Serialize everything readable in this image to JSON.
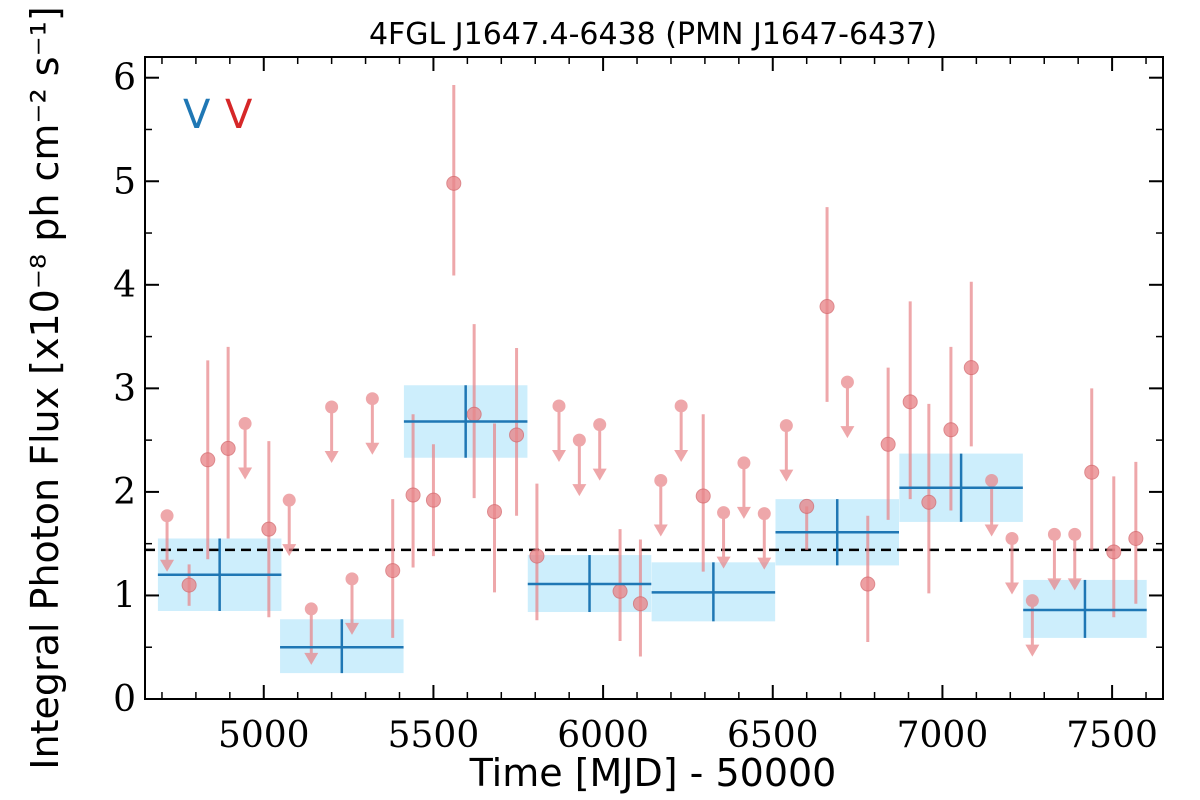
{
  "chart_data": {
    "type": "scatter",
    "title": "4FGL J1647.4-6438 (PMN J1647-6437)",
    "xlabel": "Time [MJD] - 50000",
    "ylabel": "Integral Photon Flux [x10⁻⁸ ph cm⁻² s⁻¹]",
    "xlim": [
      4650,
      7650
    ],
    "ylim": [
      0,
      6.2
    ],
    "x_ticks": [
      5000,
      5500,
      6000,
      6500,
      7000,
      7500
    ],
    "y_ticks": [
      0,
      1,
      2,
      3,
      4,
      5,
      6
    ],
    "grid": false,
    "legend_markers": [
      {
        "text": "V",
        "color": "#1f77b4"
      },
      {
        "text": "V",
        "color": "#d62728"
      }
    ],
    "mean_flux": 1.44,
    "binned_series": {
      "color": "#1f77b4",
      "band_color": "#cdeefc",
      "points": [
        {
          "x": 4870,
          "xerr": 182,
          "y": 1.2,
          "ylo": 0.85,
          "yhi": 1.55
        },
        {
          "x": 5230,
          "xerr": 182,
          "y": 0.5,
          "ylo": 0.25,
          "yhi": 0.77
        },
        {
          "x": 5595,
          "xerr": 182,
          "y": 2.68,
          "ylo": 2.33,
          "yhi": 3.03
        },
        {
          "x": 5960,
          "xerr": 182,
          "y": 1.11,
          "ylo": 0.84,
          "yhi": 1.39
        },
        {
          "x": 6325,
          "xerr": 182,
          "y": 1.03,
          "ylo": 0.75,
          "yhi": 1.32
        },
        {
          "x": 6690,
          "xerr": 182,
          "y": 1.61,
          "ylo": 1.29,
          "yhi": 1.93
        },
        {
          "x": 7055,
          "xerr": 182,
          "y": 2.04,
          "ylo": 1.71,
          "yhi": 2.37
        },
        {
          "x": 7420,
          "xerr": 182,
          "y": 0.86,
          "ylo": 0.59,
          "yhi": 1.15
        }
      ]
    },
    "monthly_series": {
      "color": "#e8868a",
      "detections": [
        {
          "x": 4780,
          "y": 1.1,
          "ylo": 0.9,
          "yhi": 1.3
        },
        {
          "x": 4835,
          "y": 2.31,
          "ylo": 1.35,
          "yhi": 3.27
        },
        {
          "x": 4895,
          "y": 2.42,
          "ylo": 1.55,
          "yhi": 3.4
        },
        {
          "x": 5015,
          "y": 1.64,
          "ylo": 0.79,
          "yhi": 2.49
        },
        {
          "x": 5380,
          "y": 1.24,
          "ylo": 0.59,
          "yhi": 1.93
        },
        {
          "x": 5440,
          "y": 1.97,
          "ylo": 1.27,
          "yhi": 2.75
        },
        {
          "x": 5500,
          "y": 1.92,
          "ylo": 1.38,
          "yhi": 2.46
        },
        {
          "x": 5560,
          "y": 4.98,
          "ylo": 4.09,
          "yhi": 5.93
        },
        {
          "x": 5620,
          "y": 2.75,
          "ylo": 1.94,
          "yhi": 3.62
        },
        {
          "x": 5680,
          "y": 1.81,
          "ylo": 1.03,
          "yhi": 2.66
        },
        {
          "x": 5745,
          "y": 2.55,
          "ylo": 1.77,
          "yhi": 3.39
        },
        {
          "x": 5805,
          "y": 1.38,
          "ylo": 0.76,
          "yhi": 2.08
        },
        {
          "x": 6050,
          "y": 1.04,
          "ylo": 0.56,
          "yhi": 1.64
        },
        {
          "x": 6110,
          "y": 0.92,
          "ylo": 0.41,
          "yhi": 1.54
        },
        {
          "x": 6295,
          "y": 1.96,
          "ylo": 1.23,
          "yhi": 2.75
        },
        {
          "x": 6600,
          "y": 1.86,
          "ylo": 1.44,
          "yhi": 1.86
        },
        {
          "x": 6660,
          "y": 3.79,
          "ylo": 2.87,
          "yhi": 4.75
        },
        {
          "x": 6780,
          "y": 1.11,
          "ylo": 0.55,
          "yhi": 1.77
        },
        {
          "x": 6840,
          "y": 2.46,
          "ylo": 1.73,
          "yhi": 3.2
        },
        {
          "x": 6905,
          "y": 2.87,
          "ylo": 1.93,
          "yhi": 3.84
        },
        {
          "x": 6960,
          "y": 1.9,
          "ylo": 1.02,
          "yhi": 2.85
        },
        {
          "x": 7025,
          "y": 2.6,
          "ylo": 1.82,
          "yhi": 3.4
        },
        {
          "x": 7085,
          "y": 3.2,
          "ylo": 2.44,
          "yhi": 4.03
        },
        {
          "x": 7440,
          "y": 2.19,
          "ylo": 1.44,
          "yhi": 3.0
        },
        {
          "x": 7505,
          "y": 1.42,
          "ylo": 0.79,
          "yhi": 2.15
        },
        {
          "x": 7570,
          "y": 1.55,
          "ylo": 0.92,
          "yhi": 2.29
        }
      ],
      "upper_limits": [
        {
          "x": 4715,
          "y": 1.77
        },
        {
          "x": 4945,
          "y": 2.66
        },
        {
          "x": 5075,
          "y": 1.92
        },
        {
          "x": 5140,
          "y": 0.87
        },
        {
          "x": 5200,
          "y": 2.82
        },
        {
          "x": 5260,
          "y": 1.16
        },
        {
          "x": 5320,
          "y": 2.9
        },
        {
          "x": 5870,
          "y": 2.83
        },
        {
          "x": 5930,
          "y": 2.5
        },
        {
          "x": 5990,
          "y": 2.65
        },
        {
          "x": 6170,
          "y": 2.11
        },
        {
          "x": 6230,
          "y": 2.83
        },
        {
          "x": 6355,
          "y": 1.8
        },
        {
          "x": 6415,
          "y": 2.28
        },
        {
          "x": 6475,
          "y": 1.79
        },
        {
          "x": 6540,
          "y": 2.64
        },
        {
          "x": 6720,
          "y": 3.06
        },
        {
          "x": 7145,
          "y": 2.11
        },
        {
          "x": 7205,
          "y": 1.55
        },
        {
          "x": 7265,
          "y": 0.95
        },
        {
          "x": 7330,
          "y": 1.59
        },
        {
          "x": 7390,
          "y": 1.59
        }
      ]
    }
  }
}
